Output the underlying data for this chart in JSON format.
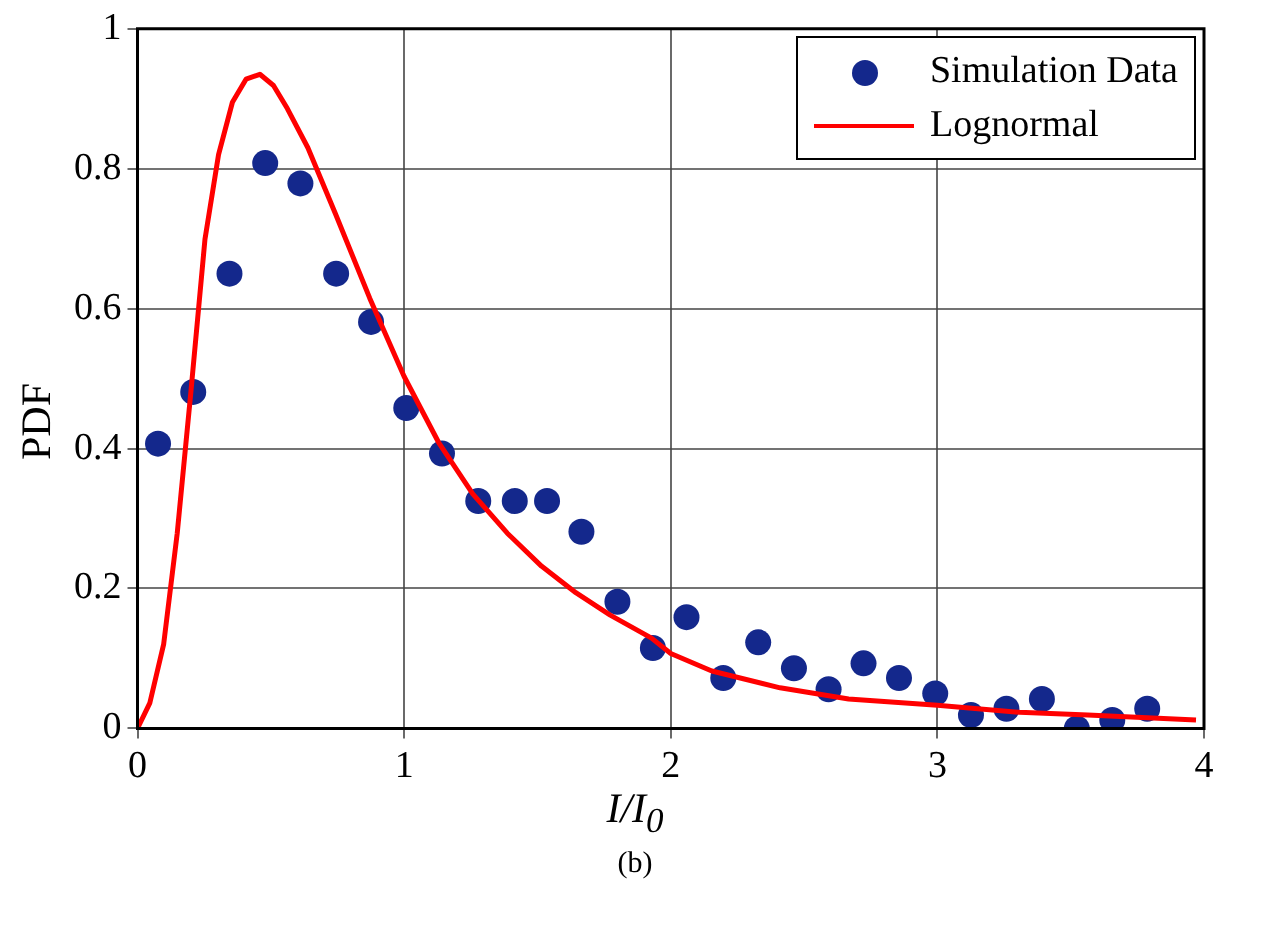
{
  "chart_data": {
    "type": "scatter",
    "xlabel": "I/I$_{0}$",
    "ylabel": "PDF",
    "annotations": [
      "(b)"
    ],
    "xlim": [
      0,
      4
    ],
    "xticks": [
      0,
      1,
      2,
      3,
      4
    ],
    "ylim": [
      0,
      1
    ],
    "yticks": [
      0,
      0.2,
      0.4,
      0.6,
      0.8,
      1
    ],
    "grid": true,
    "legend": "top right",
    "series": [
      {
        "name": "Simulation Data",
        "type": "scatter",
        "marker": "circle",
        "color": "#14288c",
        "x": [
          0.077,
          0.209,
          0.345,
          0.479,
          0.611,
          0.745,
          0.876,
          1.008,
          1.142,
          1.278,
          1.415,
          1.536,
          1.665,
          1.8,
          1.933,
          2.059,
          2.197,
          2.328,
          2.462,
          2.592,
          2.723,
          2.856,
          2.992,
          3.126,
          3.259,
          3.392,
          3.523,
          3.656,
          3.787
        ],
        "values": [
          0.407,
          0.481,
          0.65,
          0.808,
          0.779,
          0.65,
          0.581,
          0.458,
          0.393,
          0.325,
          0.325,
          0.325,
          0.281,
          0.181,
          0.115,
          0.159,
          0.072,
          0.123,
          0.086,
          0.056,
          0.093,
          0.072,
          0.05,
          0.019,
          0.028,
          0.042,
          0,
          0.012,
          0.028
        ]
      },
      {
        "name": "Lognormal",
        "type": "line",
        "marker": "none",
        "line_style": "solid",
        "color": "#ff0000",
        "x": [
          0,
          0.046,
          0.098,
          0.149,
          0.201,
          0.253,
          0.304,
          0.356,
          0.407,
          0.459,
          0.51,
          0.562,
          0.639,
          0.742,
          0.871,
          1.0,
          1.129,
          1.258,
          1.387,
          1.515,
          1.644,
          1.773,
          1.928,
          2.0,
          2.154,
          2.41,
          2.667,
          3.0,
          3.308,
          3.564,
          3.97
        ],
        "values": [
          0,
          0.036,
          0.12,
          0.279,
          0.484,
          0.699,
          0.82,
          0.895,
          0.928,
          0.935,
          0.919,
          0.886,
          0.83,
          0.736,
          0.615,
          0.503,
          0.409,
          0.335,
          0.279,
          0.232,
          0.194,
          0.162,
          0.129,
          0.107,
          0.082,
          0.058,
          0.042,
          0.033,
          0.023,
          0.019,
          0.012
        ]
      }
    ]
  }
}
